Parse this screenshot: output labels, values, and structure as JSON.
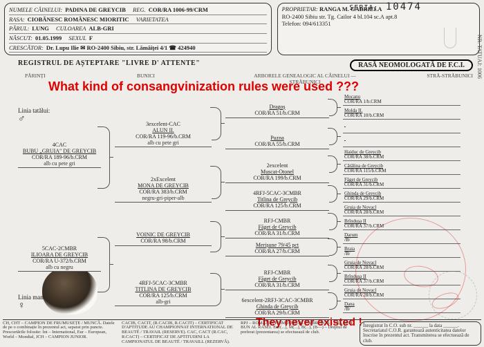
{
  "serial": {
    "label": "SERIA:",
    "value": "10474"
  },
  "header": {
    "left": [
      {
        "k": "NUMELE CÂINELUI:",
        "v": "PADINA DE GREYCIB",
        "k2": "REG.",
        "v2": "COR/RA 1006-99/CRM"
      },
      {
        "k": "RASA:",
        "v": "CIOBĂNESC ROMÂNESC MIORITIC",
        "k2": "VARIETATEA",
        "v2": ""
      },
      {
        "k": "PĂRUL:",
        "v": "LUNG",
        "k2": "CULOAREA",
        "v2": "ALB-GRI"
      },
      {
        "k": "NĂSCUT:",
        "v": "01.05.1999",
        "k2": "SEXUL",
        "v2": "F"
      },
      {
        "k": "CRESCĂTOR:",
        "v": "Dr. Lupu Ilie ✉ RO-2400 Sibiu, str. Lămâiței 4/1 ☎ 424940"
      }
    ],
    "right": {
      "k": "PROPRIETAR:",
      "name": "RANGA M. GABRIELA",
      "addr": "RO-2400 Sibiu str. Tg. Cailor 4 bl.104 sc.A apt.8",
      "tel": "Telefon: 094/613351"
    }
  },
  "titles": {
    "left": "REGISTRUL DE AȘTEPTARE \"LIVRE D' ATTENTE\"",
    "right": "RASĂ NEOMOLOGATĂ DE F.C.I.",
    "cols": [
      "PĂRINȚI",
      "BUNICI",
      "ARBORELE GENEALOGIC AL CÂINELUI  —  STRĂBUNICI",
      "STRĂ-STRĂBUNICI"
    ]
  },
  "linia": {
    "tata": "Linia tatălui:",
    "mama": "Linia mamei:"
  },
  "gen1": [
    {
      "pre": "4CAC",
      "nm": "BUBU „GRUIA\" DE GREYCIB",
      "rg": "COR/RA 189-96/b.CRM",
      "nt": "alb cu pete gri"
    },
    {
      "pre": "5CAC-2CMBR",
      "nm": "ILIOARA DE GREYCIB",
      "rg": "COR/RA U-372/b.CRM",
      "nt": "alb cu negru"
    }
  ],
  "gen2": [
    {
      "pre": "3excelent-CAC",
      "nm": "ALUN II.",
      "rg": "COR/RA 119-96/b.CRM",
      "nt": "alb cu pete gri"
    },
    {
      "pre": "2xExcelent",
      "nm": "MONA DE GREYCIB",
      "rg": "COR/RA 383/b.CRM",
      "nt": "negru-gri-piper-alb"
    },
    {
      "pre": "",
      "nm": "VOINIC DE GREYCIB",
      "rg": "COR/RA 98/b.CRM",
      "nt": ""
    },
    {
      "pre": "4RFJ-5CAC-3CMBR",
      "nm": "TITLINA DE GREYCIB",
      "rg": "COR/RA 125/b.CRM",
      "nt": "alb-gri"
    }
  ],
  "gen3": [
    {
      "nm": "Dragoș",
      "rg": "COR/RA 51/b.CRM"
    },
    {
      "nm": "Puzna",
      "rg": "COR/RA 55/b.CRM"
    },
    {
      "pre": "2excelent",
      "nm": "Muscat-Otonel",
      "rg": "COR/RA 199/b.CRM"
    },
    {
      "pre": "4RFJ-5CAC-3CMBR",
      "nm": "Titlina de Greycib",
      "rg": "COR/RA 125/b.CRM"
    },
    {
      "pre": "RFJ-CMBR",
      "nm": "Făget de Greycib",
      "rg": "COR/RA 31/b.CRM"
    },
    {
      "nm": "Merișune 79/45 pct",
      "rg": "COR/RA 27/b.CRM"
    },
    {
      "pre": "RFJ-CMBR",
      "nm": "Făget de Greycib",
      "rg": "COR/RA 31/b.CRM"
    },
    {
      "pre": "6excelent-2RFJ-3CAC-3CMBR",
      "nm": "Ghinda de Greycib",
      "rg": "COR/RA 29/b.CRM"
    }
  ],
  "gen4": [
    {
      "nm": "Mocanu",
      "rg": "COR/RA 1/b.CRM"
    },
    {
      "nm": "Molda II.",
      "rg": "COR/RA 10/b.CRM"
    },
    {
      "nm": "",
      "rg": ""
    },
    {
      "nm": "",
      "rg": ""
    },
    {
      "nm": "Haiduc de Greycib",
      "rg": "COR/RA 38/b.CRM"
    },
    {
      "nm": "Cătălina de Greycib",
      "rg": "COR/RA 115/b.CRM"
    },
    {
      "nm": "Făget de Greycib",
      "rg": "COR/RA 31/b.CRM"
    },
    {
      "nm": "Ghinda de Greycib",
      "rg": "COR/RA 29/b.CRM"
    },
    {
      "nm": "Gruia de Novacl",
      "rg": "COR/RA 28/b.CRM"
    },
    {
      "nm": "Brîndușa II",
      "rg": "COR/RA 37/b.CRM"
    },
    {
      "nm": "Darum",
      "rg": "/B/"
    },
    {
      "nm": "Braia",
      "rg": "/B/"
    },
    {
      "nm": "Gruia de Novacl",
      "rg": "COR/RA 28/b.CRM"
    },
    {
      "nm": "Brîndușa II",
      "rg": "COR/RA 37/b.CRM"
    },
    {
      "nm": "Gruia de Novacl",
      "rg": "COR/RA 28/b.CRM"
    },
    {
      "nm": "Dana",
      "rg": "/B/"
    }
  ],
  "annotations": {
    "q": "What kind of consangvinization rules were used ???",
    "e": "They never existed !"
  },
  "footer": {
    "c1": "CH, CHT – CAMPION DE FRUMUSEȚE / MUNCĂ. Datele de pe o combinație în prezentul act, separat prin puncte. Prescurtările folosite: Int – International, Eur – European, World – Mondial, JCH – CAMPION JUNIOR.",
    "c2": "CACIB, CACIT, (R.CACIB, R.CACIT) – CERTIFICAT D'APTITUDE AU CHAMPIONNAT INTERNATIONAL DE BEAUTÉ / TRAVAIL (RESERVE). CAC, CACT (R.CAC, R.CACT) – CERTIFICAT DE APTITUDINI LA CAMPIONATUL DE BEAUTÉ / TRAVAILL (REZERVĂ).",
    "c3": "RPJ – ROMÂNIA PRIM JUNIOR. CMBR, BOB – CEL MAI BUN AL RASEI. Exc(...), M(...), B(...), (B—) – Dreptul de preferat (prezentarea) se efectuează de club.",
    "reg": "Înregistrat în C.O. sub nr. ______ la data ______. Secretariatul C.O.R. garantează autenticitatea datelor înscrise în prezentul act. Transmiterea se efectuează de club."
  },
  "side": "NR. TATUAJ: 1006",
  "colors": {
    "ink": "#222",
    "red": "#e00000",
    "paper": "#eeede9"
  }
}
